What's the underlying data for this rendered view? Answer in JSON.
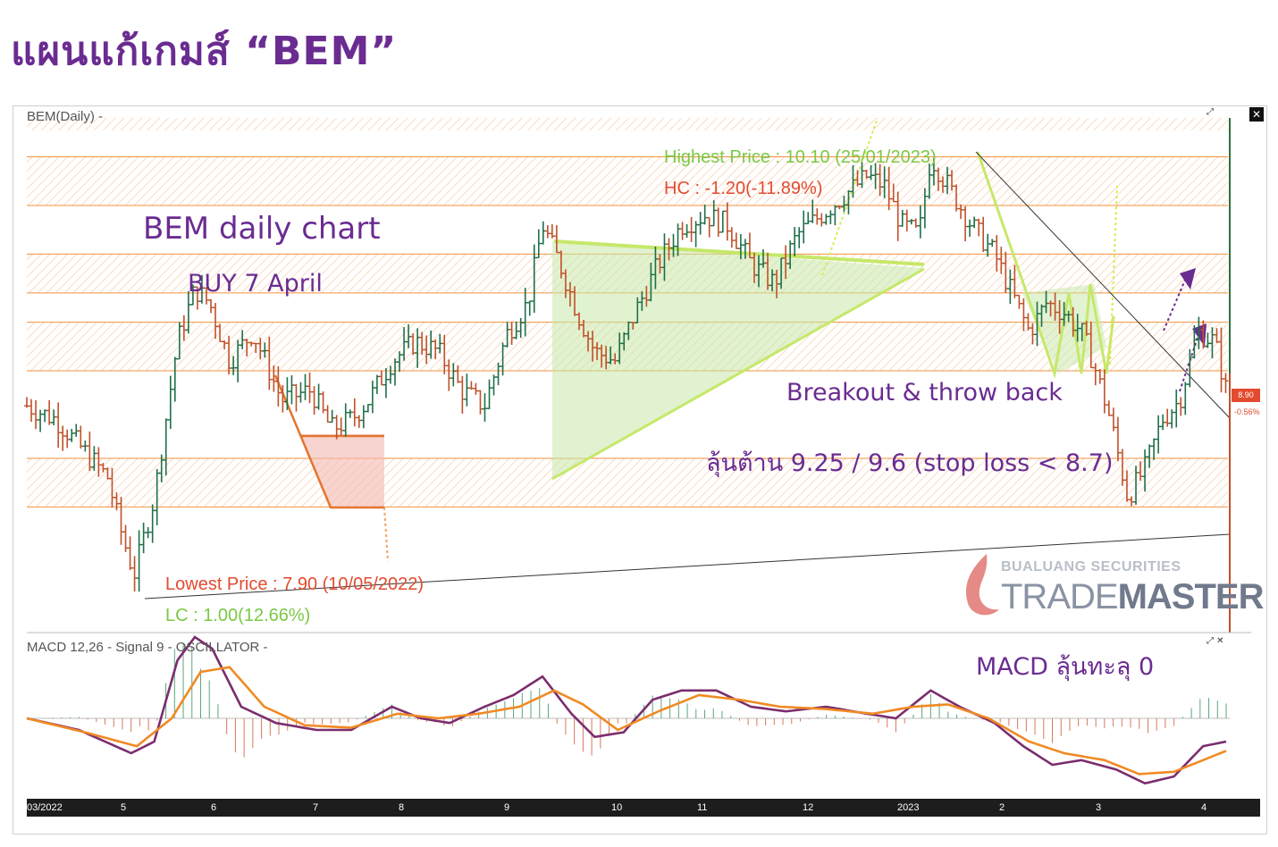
{
  "title": "แผนแก้เกมส์ “BEM”",
  "panel": {
    "symbol_label": "BEM(Daily) -",
    "macd_label": "MACD  12,26 - Signal  9 - OSCILLATOR -",
    "close_icon": "close-icon",
    "last_price_tag": "8.90",
    "change_tag": "-0.56%"
  },
  "annotations": {
    "chart_name": "BEM daily chart",
    "buy": "BUY 7 April",
    "highest": "Highest Price : 10.10 (25/01/2023)",
    "hc": "HC : -1.20(-11.89%)",
    "lowest": "Lowest Price : 7.90 (10/05/2022)",
    "lc": "LC : 1.00(12.66%)",
    "breakout": "Breakout & throw back",
    "resistance": "ลุ้นต้าน 9.25 / 9.6 (stop loss < 8.7)",
    "macd_note": "MACD ลุ้นทะลุ 0"
  },
  "logo": {
    "top": "BUALUANG SECURITIES",
    "main_a": "TRADE",
    "main_b": "MASTER"
  },
  "colors": {
    "title": "#6a2c91",
    "up_bar": "#1f6f4a",
    "down_bar": "#c0502a",
    "zone": "#f4a15d",
    "triangle": "#c6e86a",
    "macd": "#7b2d6e",
    "signal": "#f08a24",
    "highest_text": "#7ac943",
    "hc_text": "#e24b2f"
  },
  "chart_data": {
    "type": "candlestick",
    "x_ticks": [
      "03/2022",
      "5",
      "6",
      "7",
      "8",
      "9",
      "10",
      "11",
      "12",
      "2023",
      "2",
      "3",
      "4"
    ],
    "price_ylim": [
      7.7,
      10.3
    ],
    "resistance_zones": [
      [
        9.85,
        10.1
      ],
      [
        9.4,
        9.6
      ],
      [
        9.0,
        9.25
      ],
      [
        8.3,
        8.55
      ]
    ],
    "support_resistance_lines": [
      9.25,
      9.6
    ],
    "stop_loss": 8.7,
    "highest_price": 10.1,
    "lowest_price": 7.9,
    "last_price": 8.9,
    "change_pct": -0.56,
    "price_path": [
      [
        0,
        8.82
      ],
      [
        10,
        8.75
      ],
      [
        22,
        8.55
      ],
      [
        28,
        8.45
      ],
      [
        32,
        8.2
      ],
      [
        37,
        7.95
      ],
      [
        44,
        8.35
      ],
      [
        52,
        9.15
      ],
      [
        58,
        9.42
      ],
      [
        63,
        9.35
      ],
      [
        70,
        9.05
      ],
      [
        78,
        9.2
      ],
      [
        88,
        8.85
      ],
      [
        98,
        8.9
      ],
      [
        105,
        8.7
      ],
      [
        112,
        8.75
      ],
      [
        118,
        8.85
      ],
      [
        126,
        9.05
      ],
      [
        134,
        9.15
      ],
      [
        142,
        9.1
      ],
      [
        150,
        8.9
      ],
      [
        158,
        8.82
      ],
      [
        166,
        9.2
      ],
      [
        173,
        9.35
      ],
      [
        178,
        9.75
      ],
      [
        184,
        9.55
      ],
      [
        190,
        9.3
      ],
      [
        196,
        9.1
      ],
      [
        203,
        9.05
      ],
      [
        210,
        9.3
      ],
      [
        218,
        9.55
      ],
      [
        226,
        9.75
      ],
      [
        234,
        9.8
      ],
      [
        242,
        9.75
      ],
      [
        250,
        9.55
      ],
      [
        258,
        9.45
      ],
      [
        266,
        9.7
      ],
      [
        274,
        9.8
      ],
      [
        282,
        9.9
      ],
      [
        290,
        10.0
      ],
      [
        296,
        9.95
      ],
      [
        302,
        9.75
      ],
      [
        308,
        9.7
      ],
      [
        312,
        10.1
      ],
      [
        318,
        9.95
      ],
      [
        326,
        9.75
      ],
      [
        334,
        9.6
      ],
      [
        340,
        9.4
      ],
      [
        346,
        9.2
      ],
      [
        352,
        9.35
      ],
      [
        358,
        9.3
      ],
      [
        364,
        9.2
      ],
      [
        368,
        9.05
      ],
      [
        374,
        8.75
      ],
      [
        380,
        8.35
      ],
      [
        386,
        8.5
      ],
      [
        392,
        8.75
      ],
      [
        398,
        8.85
      ],
      [
        404,
        9.2
      ],
      [
        410,
        9.15
      ],
      [
        414,
        8.9
      ]
    ],
    "macd_path": [
      [
        0,
        0.0
      ],
      [
        18,
        -0.05
      ],
      [
        36,
        -0.15
      ],
      [
        44,
        -0.1
      ],
      [
        52,
        0.25
      ],
      [
        58,
        0.35
      ],
      [
        64,
        0.3
      ],
      [
        74,
        0.05
      ],
      [
        86,
        -0.02
      ],
      [
        100,
        -0.05
      ],
      [
        112,
        -0.05
      ],
      [
        126,
        0.05
      ],
      [
        136,
        0.0
      ],
      [
        146,
        -0.02
      ],
      [
        158,
        0.05
      ],
      [
        168,
        0.1
      ],
      [
        178,
        0.18
      ],
      [
        188,
        0.02
      ],
      [
        196,
        -0.08
      ],
      [
        206,
        -0.06
      ],
      [
        216,
        0.08
      ],
      [
        226,
        0.12
      ],
      [
        238,
        0.12
      ],
      [
        250,
        0.05
      ],
      [
        262,
        0.03
      ],
      [
        276,
        0.05
      ],
      [
        290,
        0.02
      ],
      [
        300,
        0.0
      ],
      [
        312,
        0.12
      ],
      [
        322,
        0.05
      ],
      [
        334,
        -0.02
      ],
      [
        344,
        -0.12
      ],
      [
        354,
        -0.2
      ],
      [
        364,
        -0.18
      ],
      [
        376,
        -0.22
      ],
      [
        386,
        -0.28
      ],
      [
        396,
        -0.25
      ],
      [
        406,
        -0.12
      ],
      [
        414,
        -0.1
      ]
    ],
    "signal_path": [
      [
        0,
        0.0
      ],
      [
        20,
        -0.06
      ],
      [
        38,
        -0.12
      ],
      [
        50,
        0.0
      ],
      [
        60,
        0.2
      ],
      [
        70,
        0.22
      ],
      [
        82,
        0.05
      ],
      [
        96,
        -0.03
      ],
      [
        112,
        -0.04
      ],
      [
        128,
        0.02
      ],
      [
        142,
        0.0
      ],
      [
        156,
        0.02
      ],
      [
        170,
        0.05
      ],
      [
        182,
        0.12
      ],
      [
        192,
        0.06
      ],
      [
        204,
        -0.05
      ],
      [
        218,
        0.03
      ],
      [
        232,
        0.1
      ],
      [
        246,
        0.08
      ],
      [
        260,
        0.05
      ],
      [
        276,
        0.04
      ],
      [
        292,
        0.02
      ],
      [
        306,
        0.05
      ],
      [
        318,
        0.06
      ],
      [
        332,
        0.0
      ],
      [
        346,
        -0.1
      ],
      [
        358,
        -0.15
      ],
      [
        372,
        -0.18
      ],
      [
        384,
        -0.24
      ],
      [
        396,
        -0.23
      ],
      [
        414,
        -0.14
      ]
    ]
  }
}
